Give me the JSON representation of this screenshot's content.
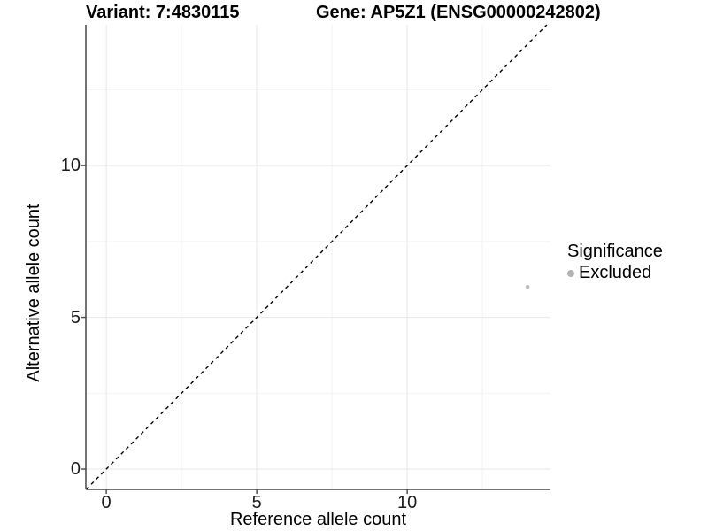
{
  "chart_data": {
    "type": "scatter",
    "title_left": "Variant: 7:4830115",
    "title_right": "Gene: AP5Z1 (ENSG00000242802)",
    "xlabel": "Reference allele count",
    "ylabel": "Alternative allele count",
    "xlim": [
      -0.68,
      14.76
    ],
    "ylim": [
      -0.67,
      14.64
    ],
    "x_ticks": [
      0,
      5,
      10
    ],
    "y_ticks": [
      0,
      5,
      10
    ],
    "x_minor_ticks": [
      2.5,
      7.5,
      12.5
    ],
    "y_minor_ticks": [
      2.5,
      7.5,
      12.5
    ],
    "grid": true,
    "points": [
      {
        "x": 14,
        "y": 6,
        "series": "Excluded"
      }
    ],
    "identity_line": {
      "equation": "y = x",
      "style": "dashed",
      "color": "#000000"
    },
    "legend": {
      "title": "Significance",
      "position": "right",
      "items": [
        {
          "label": "Excluded",
          "color": "#b3b3b3"
        }
      ]
    },
    "colors": {
      "point": "#bdbdbd",
      "axis": "#464646",
      "tick": "#464646",
      "grid_major": "#e7e7e7",
      "grid_minor": "#f2f2f2",
      "background": "#ffffff",
      "text": "#000000"
    }
  }
}
